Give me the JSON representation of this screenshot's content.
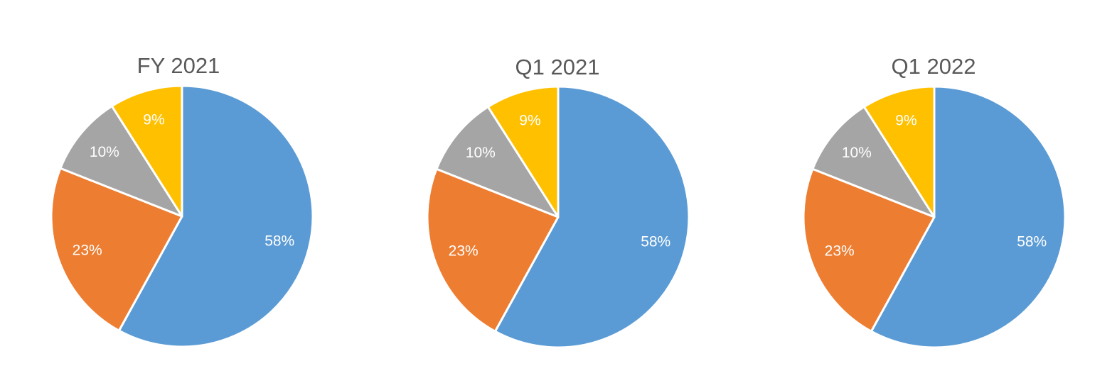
{
  "chart_data": [
    {
      "type": "pie",
      "title": "FY 2021",
      "slices": [
        {
          "value": 58,
          "label": "58%",
          "color": "#5B9BD5"
        },
        {
          "value": 23,
          "label": "23%",
          "color": "#ED7D31"
        },
        {
          "value": 10,
          "label": "10%",
          "color": "#A5A5A5"
        },
        {
          "value": 9,
          "label": "9%",
          "color": "#FFC000"
        }
      ]
    },
    {
      "type": "pie",
      "title": "Q1 2021",
      "slices": [
        {
          "value": 58,
          "label": "58%",
          "color": "#5B9BD5"
        },
        {
          "value": 23,
          "label": "23%",
          "color": "#ED7D31"
        },
        {
          "value": 10,
          "label": "10%",
          "color": "#A5A5A5"
        },
        {
          "value": 9,
          "label": "9%",
          "color": "#FFC000"
        }
      ]
    },
    {
      "type": "pie",
      "title": "Q1 2022",
      "slices": [
        {
          "value": 58,
          "label": "58%",
          "color": "#5B9BD5"
        },
        {
          "value": 23,
          "label": "23%",
          "color": "#ED7D31"
        },
        {
          "value": 10,
          "label": "10%",
          "color": "#A5A5A5"
        },
        {
          "value": 9,
          "label": "9%",
          "color": "#FFC000"
        }
      ]
    }
  ]
}
